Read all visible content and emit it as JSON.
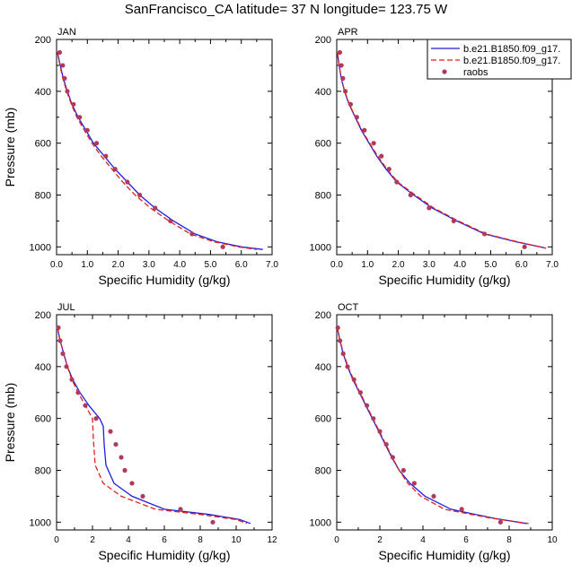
{
  "title": "SanFrancisco_CA  latitude= 37 N longitude= 123.75 W",
  "colors": {
    "model1": "#1f1fe0",
    "model2": "#e01f1f",
    "obs": "#b03a5b"
  },
  "legend": {
    "placement": "top-right of APR panel",
    "entries": [
      {
        "label": "b.e21.B1850.f09_g17.",
        "style": "solid-blue-line"
      },
      {
        "label": "b.e21.B1850.f09_g17.",
        "style": "dashed-red-line"
      },
      {
        "label": "raobs",
        "style": "purple-dot"
      }
    ]
  },
  "chart_data": [
    {
      "type": "line",
      "panel_label": "JAN",
      "xlabel": "Specific Humidity (g/kg)",
      "ylabel": "Pressure (mb)",
      "xlim": [
        0,
        7
      ],
      "ylim": [
        1030,
        200
      ],
      "y_inverted": true,
      "grid": false,
      "xticks": [
        0,
        1,
        2,
        3,
        4,
        5,
        6,
        7
      ],
      "xticklabels": [
        "0.0",
        "1.0",
        "2.0",
        "3.0",
        "4.0",
        "5.0",
        "6.0",
        "7.0"
      ],
      "yticks": [
        200,
        400,
        600,
        800,
        1000
      ],
      "series": [
        {
          "name": "b.e21.B1850.f09_g17.",
          "style": "solid",
          "color": "#1f1fe0",
          "points": [
            [
              0.03,
              250
            ],
            [
              0.12,
              300
            ],
            [
              0.22,
              350
            ],
            [
              0.35,
              400
            ],
            [
              0.5,
              450
            ],
            [
              0.7,
              500
            ],
            [
              0.95,
              550
            ],
            [
              1.2,
              600
            ],
            [
              1.55,
              650
            ],
            [
              1.9,
              700
            ],
            [
              2.3,
              750
            ],
            [
              2.7,
              800
            ],
            [
              3.2,
              850
            ],
            [
              3.8,
              900
            ],
            [
              4.5,
              950
            ],
            [
              5.2,
              980
            ],
            [
              6.0,
              1000
            ],
            [
              6.7,
              1010
            ]
          ]
        },
        {
          "name": "b.e21.B1850.f09_g17.",
          "style": "dashed",
          "color": "#e01f1f",
          "points": [
            [
              0.03,
              250
            ],
            [
              0.11,
              300
            ],
            [
              0.2,
              350
            ],
            [
              0.33,
              400
            ],
            [
              0.48,
              450
            ],
            [
              0.66,
              500
            ],
            [
              0.9,
              550
            ],
            [
              1.15,
              600
            ],
            [
              1.45,
              650
            ],
            [
              1.8,
              700
            ],
            [
              2.15,
              750
            ],
            [
              2.55,
              800
            ],
            [
              3.05,
              850
            ],
            [
              3.65,
              900
            ],
            [
              4.35,
              950
            ],
            [
              5.1,
              980
            ],
            [
              5.9,
              1000
            ],
            [
              6.5,
              1010
            ]
          ]
        },
        {
          "name": "raobs",
          "style": "markers",
          "color": "#b03a5b",
          "points": [
            [
              0.1,
              250
            ],
            [
              0.2,
              300
            ],
            [
              0.26,
              350
            ],
            [
              0.35,
              400
            ],
            [
              0.55,
              450
            ],
            [
              0.75,
              500
            ],
            [
              1.0,
              550
            ],
            [
              1.3,
              600
            ],
            [
              1.6,
              650
            ],
            [
              1.9,
              700
            ],
            [
              2.3,
              750
            ],
            [
              2.7,
              800
            ],
            [
              3.2,
              850
            ],
            [
              3.7,
              900
            ],
            [
              4.4,
              950
            ],
            [
              5.4,
              1000
            ]
          ]
        }
      ]
    },
    {
      "type": "line",
      "panel_label": "APR",
      "xlabel": "Specific Humidity (g/kg)",
      "ylabel": "",
      "xlim": [
        0,
        7
      ],
      "ylim": [
        1030,
        200
      ],
      "y_inverted": true,
      "grid": false,
      "xticks": [
        0,
        1,
        2,
        3,
        4,
        5,
        6,
        7
      ],
      "xticklabels": [
        "0.0",
        "1.0",
        "2.0",
        "3.0",
        "4.0",
        "5.0",
        "6.0",
        "7.0"
      ],
      "yticks": [
        200,
        400,
        600,
        800,
        1000
      ],
      "series": [
        {
          "name": "b.e21.B1850.f09_g17.",
          "style": "solid",
          "color": "#1f1fe0",
          "points": [
            [
              0.02,
              250
            ],
            [
              0.08,
              300
            ],
            [
              0.15,
              350
            ],
            [
              0.25,
              400
            ],
            [
              0.4,
              450
            ],
            [
              0.6,
              500
            ],
            [
              0.8,
              550
            ],
            [
              1.05,
              600
            ],
            [
              1.3,
              650
            ],
            [
              1.6,
              700
            ],
            [
              1.95,
              750
            ],
            [
              2.5,
              800
            ],
            [
              3.1,
              850
            ],
            [
              3.9,
              900
            ],
            [
              4.8,
              950
            ],
            [
              5.8,
              980
            ],
            [
              6.8,
              1005
            ]
          ]
        },
        {
          "name": "b.e21.B1850.f09_g17.",
          "style": "dashed",
          "color": "#e01f1f",
          "points": [
            [
              0.02,
              250
            ],
            [
              0.08,
              300
            ],
            [
              0.15,
              350
            ],
            [
              0.26,
              400
            ],
            [
              0.41,
              450
            ],
            [
              0.61,
              500
            ],
            [
              0.82,
              550
            ],
            [
              1.07,
              600
            ],
            [
              1.33,
              650
            ],
            [
              1.63,
              700
            ],
            [
              1.98,
              750
            ],
            [
              2.55,
              800
            ],
            [
              3.15,
              850
            ],
            [
              3.95,
              900
            ],
            [
              4.85,
              950
            ],
            [
              5.85,
              980
            ],
            [
              6.8,
              1005
            ]
          ]
        },
        {
          "name": "raobs",
          "style": "markers",
          "color": "#b03a5b",
          "points": [
            [
              0.1,
              250
            ],
            [
              0.15,
              300
            ],
            [
              0.2,
              350
            ],
            [
              0.28,
              400
            ],
            [
              0.45,
              450
            ],
            [
              0.65,
              500
            ],
            [
              0.9,
              550
            ],
            [
              1.2,
              600
            ],
            [
              1.45,
              650
            ],
            [
              1.7,
              700
            ],
            [
              1.95,
              750
            ],
            [
              2.4,
              800
            ],
            [
              3.0,
              850
            ],
            [
              3.8,
              900
            ],
            [
              4.8,
              950
            ],
            [
              6.1,
              1000
            ]
          ]
        }
      ]
    },
    {
      "type": "line",
      "panel_label": "JUL",
      "xlabel": "Specific Humidity (g/kg)",
      "ylabel": "Pressure (mb)",
      "xlim": [
        0,
        12
      ],
      "ylim": [
        1030,
        200
      ],
      "y_inverted": true,
      "grid": false,
      "xticks": [
        0,
        2,
        4,
        6,
        8,
        10,
        12
      ],
      "xticklabels": [
        "0",
        "2",
        "4",
        "6",
        "8",
        "10",
        "12"
      ],
      "yticks": [
        200,
        400,
        600,
        800,
        1000
      ],
      "series": [
        {
          "name": "b.e21.B1850.f09_g17.",
          "style": "solid",
          "color": "#1f1fe0",
          "points": [
            [
              0.05,
              250
            ],
            [
              0.2,
              300
            ],
            [
              0.4,
              350
            ],
            [
              0.6,
              400
            ],
            [
              0.9,
              450
            ],
            [
              1.3,
              500
            ],
            [
              1.8,
              550
            ],
            [
              2.4,
              600
            ],
            [
              2.6,
              630
            ],
            [
              2.65,
              700
            ],
            [
              2.75,
              780
            ],
            [
              3.2,
              850
            ],
            [
              4.2,
              900
            ],
            [
              6.0,
              950
            ],
            [
              8.5,
              970
            ],
            [
              10.2,
              990
            ],
            [
              10.8,
              1005
            ]
          ]
        },
        {
          "name": "b.e21.B1850.f09_g17.",
          "style": "dashed",
          "color": "#e01f1f",
          "points": [
            [
              0.05,
              250
            ],
            [
              0.2,
              300
            ],
            [
              0.4,
              350
            ],
            [
              0.6,
              400
            ],
            [
              0.85,
              450
            ],
            [
              1.2,
              500
            ],
            [
              1.6,
              550
            ],
            [
              2.0,
              600
            ],
            [
              2.05,
              680
            ],
            [
              2.15,
              780
            ],
            [
              2.6,
              850
            ],
            [
              3.6,
              900
            ],
            [
              5.5,
              950
            ],
            [
              8.0,
              970
            ],
            [
              10.0,
              990
            ],
            [
              10.6,
              1005
            ]
          ]
        },
        {
          "name": "raobs",
          "style": "markers",
          "color": "#b03a5b",
          "points": [
            [
              0.1,
              250
            ],
            [
              0.2,
              300
            ],
            [
              0.35,
              350
            ],
            [
              0.55,
              400
            ],
            [
              0.85,
              450
            ],
            [
              1.2,
              500
            ],
            [
              1.6,
              550
            ],
            [
              2.2,
              600
            ],
            [
              3.0,
              650
            ],
            [
              3.3,
              700
            ],
            [
              3.6,
              750
            ],
            [
              3.8,
              800
            ],
            [
              4.2,
              850
            ],
            [
              4.8,
              900
            ],
            [
              6.9,
              950
            ],
            [
              8.7,
              1000
            ]
          ]
        }
      ]
    },
    {
      "type": "line",
      "panel_label": "OCT",
      "xlabel": "Specific Humidity (g/kg)",
      "ylabel": "",
      "xlim": [
        0,
        10
      ],
      "ylim": [
        1030,
        200
      ],
      "y_inverted": true,
      "grid": false,
      "xticks": [
        0,
        2,
        4,
        6,
        8,
        10
      ],
      "xticklabels": [
        "0",
        "2",
        "4",
        "6",
        "8",
        "10"
      ],
      "yticks": [
        200,
        400,
        600,
        800,
        1000
      ],
      "series": [
        {
          "name": "b.e21.B1850.f09_g17.",
          "style": "solid",
          "color": "#1f1fe0",
          "points": [
            [
              0.03,
              250
            ],
            [
              0.15,
              300
            ],
            [
              0.3,
              350
            ],
            [
              0.5,
              400
            ],
            [
              0.75,
              450
            ],
            [
              1.05,
              500
            ],
            [
              1.35,
              550
            ],
            [
              1.65,
              600
            ],
            [
              1.95,
              650
            ],
            [
              2.25,
              700
            ],
            [
              2.55,
              750
            ],
            [
              2.9,
              800
            ],
            [
              3.4,
              850
            ],
            [
              4.1,
              900
            ],
            [
              5.3,
              950
            ],
            [
              7.3,
              985
            ],
            [
              8.8,
              1005
            ]
          ]
        },
        {
          "name": "b.e21.B1850.f09_g17.",
          "style": "dashed",
          "color": "#e01f1f",
          "points": [
            [
              0.03,
              250
            ],
            [
              0.15,
              300
            ],
            [
              0.32,
              350
            ],
            [
              0.52,
              400
            ],
            [
              0.78,
              450
            ],
            [
              1.08,
              500
            ],
            [
              1.38,
              550
            ],
            [
              1.68,
              600
            ],
            [
              1.98,
              650
            ],
            [
              2.28,
              700
            ],
            [
              2.58,
              750
            ],
            [
              2.9,
              800
            ],
            [
              3.3,
              850
            ],
            [
              3.9,
              900
            ],
            [
              5.0,
              950
            ],
            [
              7.2,
              985
            ],
            [
              8.9,
              1005
            ]
          ]
        },
        {
          "name": "raobs",
          "style": "markers",
          "color": "#b03a5b",
          "points": [
            [
              0.05,
              250
            ],
            [
              0.15,
              300
            ],
            [
              0.3,
              350
            ],
            [
              0.5,
              400
            ],
            [
              0.8,
              450
            ],
            [
              1.1,
              500
            ],
            [
              1.4,
              550
            ],
            [
              1.7,
              600
            ],
            [
              2.0,
              650
            ],
            [
              2.3,
              700
            ],
            [
              2.6,
              750
            ],
            [
              3.1,
              800
            ],
            [
              3.6,
              850
            ],
            [
              4.5,
              900
            ],
            [
              5.8,
              950
            ],
            [
              7.6,
              1000
            ]
          ]
        }
      ]
    }
  ]
}
